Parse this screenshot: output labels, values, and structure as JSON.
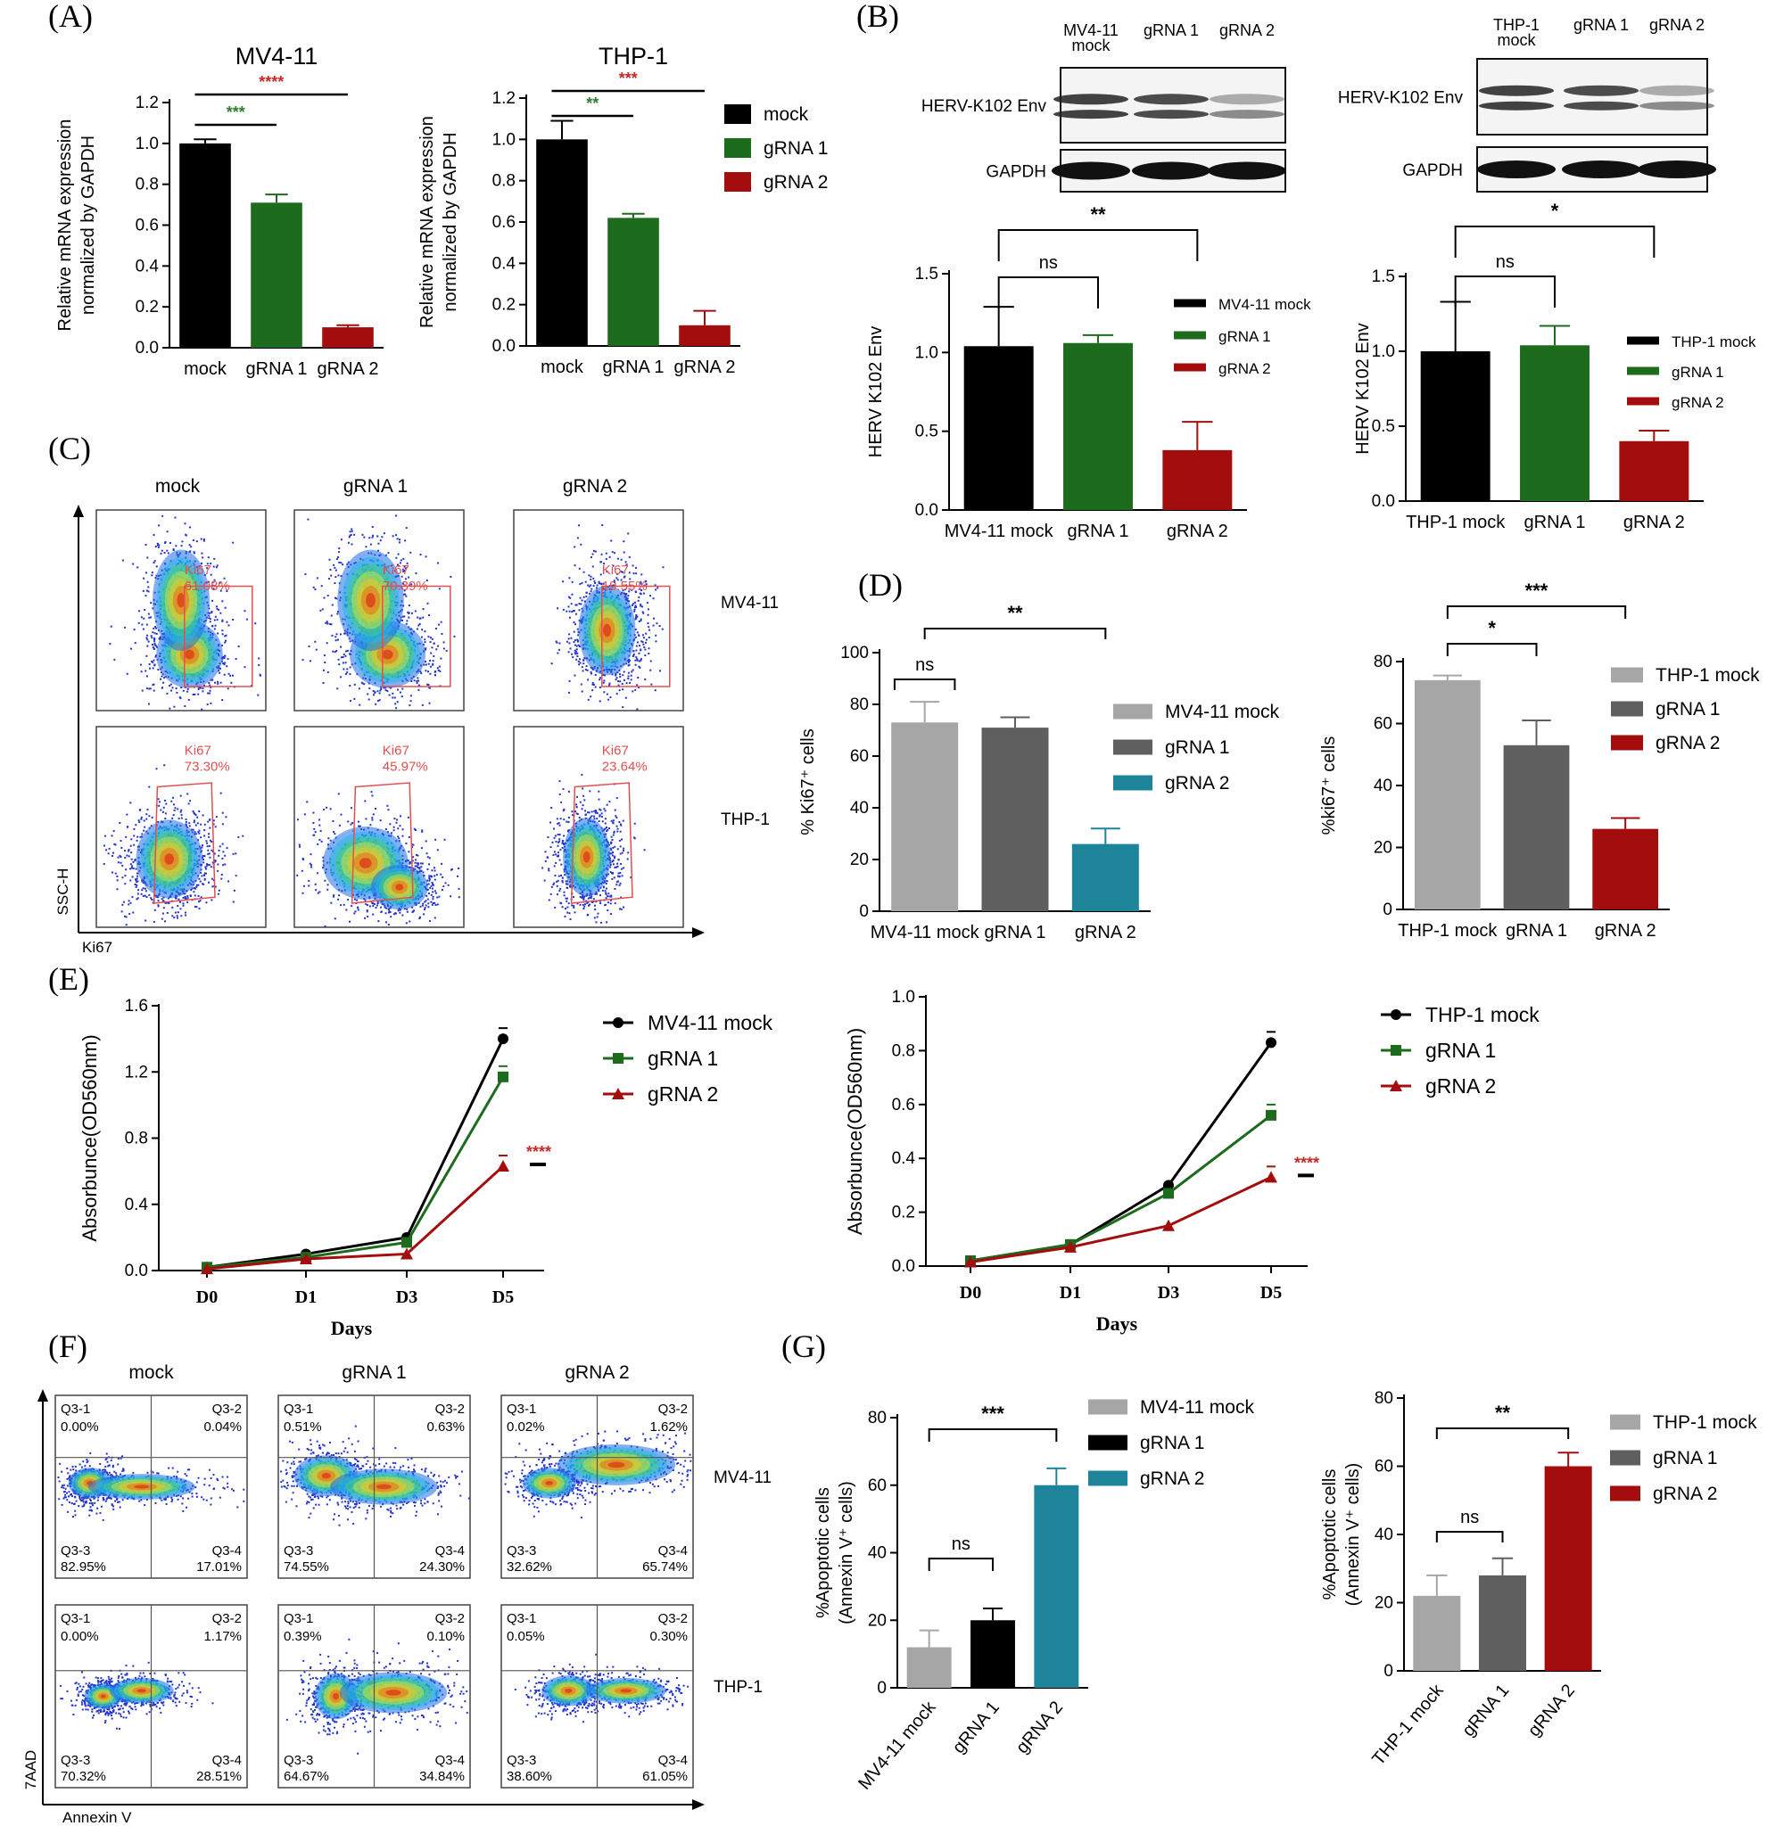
{
  "panel_letters": [
    "(A)",
    "(B)",
    "(C)",
    "(D)",
    "(E)",
    "(F)",
    "(G)"
  ],
  "colors": {
    "black": "#000000",
    "green": "#1d6b1d",
    "red": "#a30d0d",
    "lightgray": "#a6a6a6",
    "darkgray": "#5f5f5f",
    "teal": "#1e849a",
    "sig_green": "#2e7d32",
    "sig_red": "#c62828",
    "gate": "#e05050"
  },
  "legend_A": [
    "mock",
    "gRNA 1",
    "gRNA 2"
  ],
  "western_B": {
    "left": {
      "lanes": [
        "MV4-11\nmock",
        "gRNA 1",
        "gRNA 2"
      ],
      "rows": [
        "HERV-K102 Env",
        "GAPDH"
      ]
    },
    "right": {
      "lanes": [
        "THP-1\nmock",
        "gRNA 1",
        "gRNA 2"
      ],
      "rows": [
        "HERV-K102 Env",
        "GAPDH"
      ]
    }
  },
  "flow_C": {
    "cols": [
      "mock",
      "gRNA 1",
      "gRNA 2"
    ],
    "rows": [
      "MV4-11",
      "THP-1"
    ],
    "gate_label": "Ki67",
    "values": [
      [
        "61.08%",
        "70.39%",
        "19.55%"
      ],
      [
        "73.30%",
        "45.97%",
        "23.64%"
      ]
    ],
    "ylabel": "SSC-H",
    "xlabel": "Ki67"
  },
  "flow_F": {
    "cols": [
      "mock",
      "gRNA 1",
      "gRNA 2"
    ],
    "rows": [
      "MV4-11",
      "THP-1"
    ],
    "quad_names": [
      "Q3-1",
      "Q3-2",
      "Q3-3",
      "Q3-4"
    ],
    "values": [
      [
        [
          "0.00%",
          "0.04%",
          "82.95%",
          "17.01%"
        ],
        [
          "0.51%",
          "0.63%",
          "74.55%",
          "24.30%"
        ],
        [
          "0.02%",
          "1.62%",
          "32.62%",
          "65.74%"
        ]
      ],
      [
        [
          "0.00%",
          "1.17%",
          "70.32%",
          "28.51%"
        ],
        [
          "0.39%",
          "0.10%",
          "64.67%",
          "34.84%"
        ],
        [
          "0.05%",
          "0.30%",
          "38.60%",
          "61.05%"
        ]
      ]
    ],
    "ylabel": "7AAD",
    "xlabel": "Annexin V"
  },
  "chart_data": [
    {
      "id": "A1",
      "type": "bar",
      "title": "MV4-11",
      "categories": [
        "mock",
        "gRNA 1",
        "gRNA 2"
      ],
      "values": [
        1.0,
        0.71,
        0.1
      ],
      "errors": [
        0.02,
        0.04,
        0.01
      ],
      "ylabel": "Relative mRNA expression\nnormalized by GAPDH",
      "ylim": [
        0,
        1.2
      ],
      "yticks": [
        0.0,
        0.2,
        0.4,
        0.6,
        0.8,
        1.0,
        1.2
      ],
      "colors": [
        "#000000",
        "#1d6b1d",
        "#a30d0d"
      ],
      "sig": [
        {
          "a": 0,
          "b": 1,
          "label": "***",
          "color": "#2e7d32"
        },
        {
          "a": 0,
          "b": 2,
          "label": "****",
          "color": "#c62828"
        }
      ]
    },
    {
      "id": "A2",
      "type": "bar",
      "title": "THP-1",
      "categories": [
        "mock",
        "gRNA 1",
        "gRNA 2"
      ],
      "values": [
        1.0,
        0.62,
        0.1
      ],
      "errors": [
        0.09,
        0.02,
        0.07
      ],
      "ylabel": "Relative mRNA expression\nnormalized by GAPDH",
      "ylim": [
        0,
        1.2
      ],
      "yticks": [
        0.0,
        0.2,
        0.4,
        0.6,
        0.8,
        1.0,
        1.2
      ],
      "colors": [
        "#000000",
        "#1d6b1d",
        "#a30d0d"
      ],
      "sig": [
        {
          "a": 0,
          "b": 1,
          "label": "**",
          "color": "#2e7d32"
        },
        {
          "a": 0,
          "b": 2,
          "label": "***",
          "color": "#c62828"
        }
      ]
    },
    {
      "id": "B1",
      "type": "bar",
      "categories": [
        "MV4-11 mock",
        "gRNA 1",
        "gRNA 2"
      ],
      "values": [
        1.04,
        1.06,
        0.38
      ],
      "errors": [
        0.25,
        0.05,
        0.18
      ],
      "ylabel": "HERV K102 Env",
      "ylim": [
        0,
        1.5
      ],
      "yticks": [
        0.0,
        0.5,
        1.0,
        1.5
      ],
      "colors": [
        "#000000",
        "#1d6b1d",
        "#a30d0d"
      ],
      "legend": [
        "MV4-11 mock",
        "gRNA 1",
        "gRNA 2"
      ],
      "sig": [
        {
          "a": 0,
          "b": 1,
          "label": "ns"
        },
        {
          "a": 0,
          "b": 2,
          "label": "**"
        }
      ]
    },
    {
      "id": "B2",
      "type": "bar",
      "categories": [
        "THP-1 mock",
        "gRNA 1",
        "gRNA 2"
      ],
      "values": [
        1.0,
        1.04,
        0.4
      ],
      "errors": [
        0.33,
        0.13,
        0.07
      ],
      "ylabel": "HERV K102 Env",
      "ylim": [
        0,
        1.5
      ],
      "yticks": [
        0.0,
        0.5,
        1.0,
        1.5
      ],
      "colors": [
        "#000000",
        "#1d6b1d",
        "#a30d0d"
      ],
      "legend": [
        "THP-1 mock",
        "gRNA 1",
        "gRNA 2"
      ],
      "sig": [
        {
          "a": 0,
          "b": 1,
          "label": "ns"
        },
        {
          "a": 0,
          "b": 2,
          "label": "*"
        }
      ]
    },
    {
      "id": "D1",
      "type": "bar",
      "categories": [
        "MV4-11 mock",
        "gRNA 1",
        "gRNA 2"
      ],
      "values": [
        73,
        71,
        26
      ],
      "errors": [
        8,
        4,
        6
      ],
      "ylabel": "% Ki67⁺ cells",
      "ylim": [
        0,
        100
      ],
      "yticks": [
        0,
        20,
        40,
        60,
        80,
        100
      ],
      "colors": [
        "#a6a6a6",
        "#5f5f5f",
        "#1e849a"
      ],
      "legend": [
        "MV4-11 mock",
        "gRNA 1",
        "gRNA 2"
      ],
      "sig": [
        {
          "a": 0,
          "b": 0,
          "label": "ns"
        },
        {
          "a": 0,
          "b": 2,
          "label": "**"
        }
      ]
    },
    {
      "id": "D2",
      "type": "bar",
      "categories": [
        "THP-1 mock",
        "gRNA 1",
        "gRNA 2"
      ],
      "values": [
        74,
        53,
        26
      ],
      "errors": [
        1.5,
        8,
        3.5
      ],
      "ylabel": "%ki67⁺ cells",
      "ylim": [
        0,
        80
      ],
      "yticks": [
        0,
        20,
        40,
        60,
        80
      ],
      "colors": [
        "#a6a6a6",
        "#5f5f5f",
        "#a30d0d"
      ],
      "legend": [
        "THP-1 mock",
        "gRNA 1",
        "gRNA 2"
      ],
      "sig": [
        {
          "a": 0,
          "b": 1,
          "label": "*"
        },
        {
          "a": 0,
          "b": 2,
          "label": "***"
        }
      ]
    },
    {
      "id": "E1",
      "type": "line",
      "x": [
        "D0",
        "D1",
        "D3",
        "D5"
      ],
      "xlabel": "Days",
      "ylabel": "Absorbunce(OD560nm)",
      "ylim": [
        0,
        1.6
      ],
      "yticks": [
        0.0,
        0.4,
        0.8,
        1.2,
        1.6
      ],
      "series": [
        {
          "name": "MV4-11 mock",
          "values": [
            0.02,
            0.1,
            0.2,
            1.4
          ],
          "color": "#000000",
          "marker": "circle"
        },
        {
          "name": "gRNA 1",
          "values": [
            0.02,
            0.08,
            0.17,
            1.17
          ],
          "color": "#1d6b1d",
          "marker": "square"
        },
        {
          "name": "gRNA 2",
          "values": [
            0.01,
            0.07,
            0.1,
            0.63
          ],
          "color": "#a30d0d",
          "marker": "triangle"
        }
      ],
      "sig_label": "****"
    },
    {
      "id": "E2",
      "type": "line",
      "x": [
        "D0",
        "D1",
        "D3",
        "D5"
      ],
      "xlabel": "Days",
      "ylabel": "Absorbunce(OD560nm)",
      "ylim": [
        0,
        1.0
      ],
      "yticks": [
        0.0,
        0.2,
        0.4,
        0.6,
        0.8,
        1.0
      ],
      "series": [
        {
          "name": "THP-1 mock",
          "values": [
            0.02,
            0.08,
            0.3,
            0.83
          ],
          "color": "#000000",
          "marker": "circle"
        },
        {
          "name": "gRNA 1",
          "values": [
            0.02,
            0.08,
            0.27,
            0.56
          ],
          "color": "#1d6b1d",
          "marker": "square"
        },
        {
          "name": "gRNA 2",
          "values": [
            0.015,
            0.07,
            0.15,
            0.33
          ],
          "color": "#a30d0d",
          "marker": "triangle"
        }
      ],
      "sig_label": "****"
    },
    {
      "id": "G1",
      "type": "bar",
      "categories": [
        "MV4-11 mock",
        "gRNA 1",
        "gRNA 2"
      ],
      "values": [
        12,
        20,
        60
      ],
      "errors": [
        5,
        3.5,
        5
      ],
      "ylabel": "%Apoptotic cells\n(Annexin V⁺ cells)",
      "ylim": [
        0,
        80
      ],
      "yticks": [
        0,
        20,
        40,
        60,
        80
      ],
      "colors": [
        "#a6a6a6",
        "#000000",
        "#1e849a"
      ],
      "legend": [
        "MV4-11 mock",
        "gRNA 1",
        "gRNA 2"
      ],
      "sig": [
        {
          "a": 0,
          "b": 1,
          "label": "ns"
        },
        {
          "a": 0,
          "b": 2,
          "label": "***"
        }
      ]
    },
    {
      "id": "G2",
      "type": "bar",
      "categories": [
        "THP-1 mock",
        "gRNA 1",
        "gRNA 2"
      ],
      "values": [
        22,
        28,
        60
      ],
      "errors": [
        6,
        5,
        4
      ],
      "ylabel": "%Apoptotic cells\n(Annexin V⁺ cells)",
      "ylim": [
        0,
        80
      ],
      "yticks": [
        0,
        20,
        40,
        60,
        80
      ],
      "colors": [
        "#a6a6a6",
        "#5f5f5f",
        "#a30d0d"
      ],
      "legend": [
        "THP-1 mock",
        "gRNA 1",
        "gRNA 2"
      ],
      "sig": [
        {
          "a": 0,
          "b": 1,
          "label": "ns"
        },
        {
          "a": 0,
          "b": 2,
          "label": "**"
        }
      ]
    }
  ]
}
